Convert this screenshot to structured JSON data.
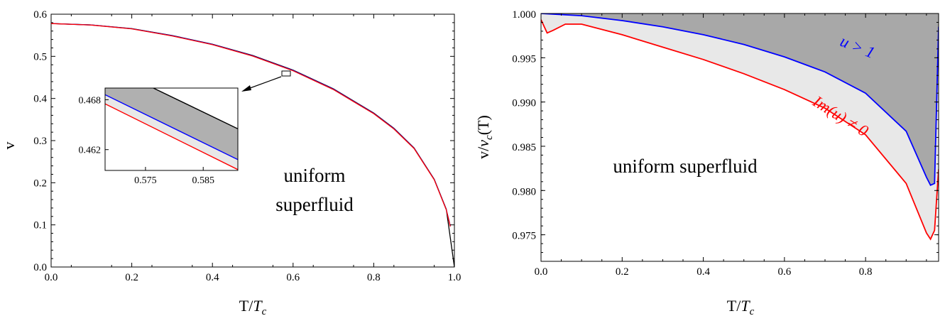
{
  "chart_data": [
    {
      "type": "line",
      "xlabel": "T/T_c",
      "ylabel": "v",
      "xlim": [
        0,
        1
      ],
      "ylim": [
        0,
        0.6
      ],
      "x_ticks": [
        "0.0",
        "0.2",
        "0.4",
        "0.6",
        "0.8",
        "1.0"
      ],
      "y_ticks": [
        "0.0",
        "0.1",
        "0.2",
        "0.3",
        "0.4",
        "0.5",
        "0.6"
      ],
      "annotation": "uniform\nsuperfluid",
      "series": [
        {
          "color": "#000000",
          "x": [
            0,
            0.1,
            0.2,
            0.3,
            0.4,
            0.5,
            0.6,
            0.7,
            0.8,
            0.85,
            0.9,
            0.95,
            0.98,
            1.0
          ],
          "y": [
            0.578,
            0.5745,
            0.5658,
            0.5495,
            0.5289,
            0.502,
            0.4673,
            0.4228,
            0.3654,
            0.3293,
            0.2827,
            0.2083,
            0.137,
            0.0
          ]
        },
        {
          "color": "#0000ff",
          "x": [
            0,
            0.1,
            0.2,
            0.3,
            0.4,
            0.5,
            0.6,
            0.7,
            0.8,
            0.85,
            0.9,
            0.95,
            0.98,
            0.99
          ],
          "y": [
            0.578,
            0.5744,
            0.5655,
            0.549,
            0.5283,
            0.5012,
            0.4665,
            0.422,
            0.3646,
            0.3285,
            0.282,
            0.2076,
            0.1362,
            0.097
          ]
        },
        {
          "color": "#ff0000",
          "x": [
            0,
            0.1,
            0.2,
            0.3,
            0.4,
            0.5,
            0.6,
            0.7,
            0.8,
            0.85,
            0.9,
            0.95,
            0.98,
            0.99
          ],
          "y": [
            0.5778,
            0.5742,
            0.5652,
            0.5485,
            0.5277,
            0.5005,
            0.4657,
            0.4211,
            0.3638,
            0.3277,
            0.2813,
            0.2071,
            0.1357,
            0.096
          ]
        }
      ],
      "inset": {
        "xlim": [
          0.568,
          0.591
        ],
        "ylim": [
          0.4595,
          0.4694
        ],
        "x_ticks": [
          "0.575",
          "0.585"
        ],
        "y_ticks": [
          "0.462",
          "0.468"
        ],
        "series": [
          {
            "color": "#000000",
            "x": [
              0.568,
              0.591
            ],
            "y": [
              0.4722,
              0.4645
            ]
          },
          {
            "color": "#0000ff",
            "x": [
              0.568,
              0.591
            ],
            "y": [
              0.4686,
              0.4608
            ]
          },
          {
            "color": "#ff0000",
            "x": [
              0.568,
              0.591
            ],
            "y": [
              0.4675,
              0.4596
            ]
          }
        ]
      }
    },
    {
      "type": "line",
      "xlabel": "T/T_c",
      "ylabel": "v/v_c(T)",
      "xlim": [
        0,
        0.98
      ],
      "ylim": [
        0.972,
        1.0
      ],
      "x_ticks": [
        "0.0",
        "0.2",
        "0.4",
        "0.6",
        "0.8"
      ],
      "y_ticks": [
        "0.975",
        "0.980",
        "0.985",
        "0.990",
        "0.995",
        "1.000"
      ],
      "annotation": "uniform superfluid",
      "series": [
        {
          "name": "u > 1",
          "color": "#0000ff",
          "x": [
            0,
            0.1,
            0.2,
            0.3,
            0.4,
            0.5,
            0.6,
            0.7,
            0.8,
            0.9,
            0.95,
            0.96,
            0.97,
            0.98
          ],
          "y": [
            1.0,
            0.99975,
            0.9992,
            0.9985,
            0.9976,
            0.9965,
            0.9951,
            0.9934,
            0.991,
            0.9867,
            0.9815,
            0.9806,
            0.9808,
            0.9985
          ]
        },
        {
          "name": "Im(u) ≠ 0",
          "color": "#ff0000",
          "x": [
            0,
            0.015,
            0.03,
            0.06,
            0.1,
            0.2,
            0.3,
            0.4,
            0.5,
            0.6,
            0.7,
            0.8,
            0.9,
            0.95,
            0.96,
            0.97,
            0.98
          ],
          "y": [
            0.9993,
            0.9978,
            0.9981,
            0.9988,
            0.9988,
            0.9976,
            0.9962,
            0.9948,
            0.9932,
            0.9914,
            0.9893,
            0.9863,
            0.9808,
            0.9752,
            0.9745,
            0.9755,
            0.9824
          ]
        }
      ]
    }
  ]
}
